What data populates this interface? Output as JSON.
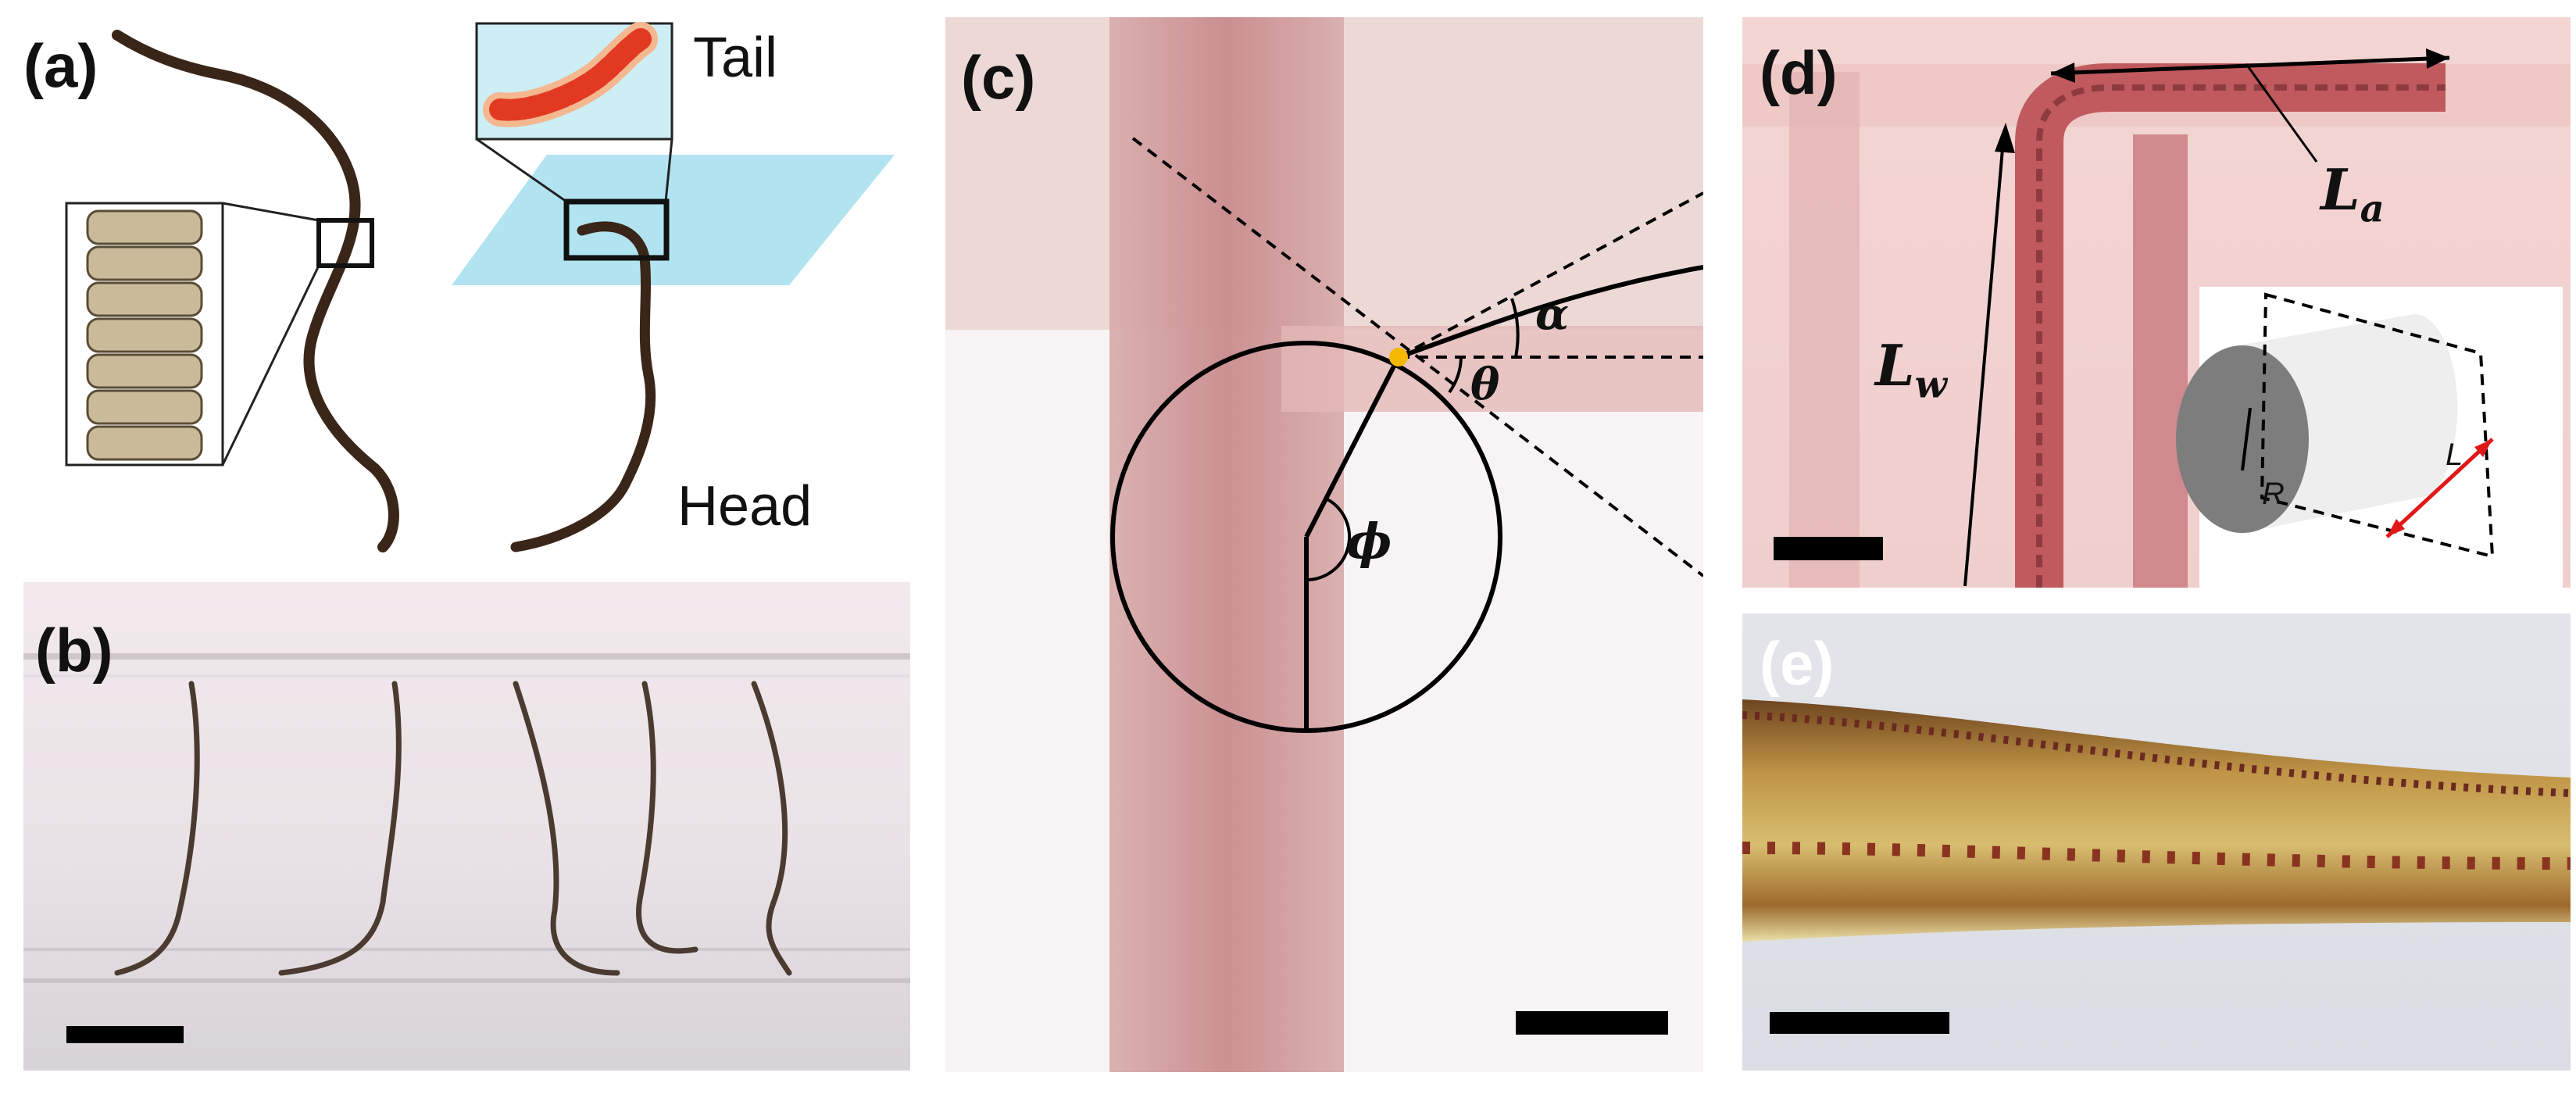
{
  "figure": {
    "panels": {
      "a": {
        "label": "(a)",
        "tail_text": "Tail",
        "head_text": "Head"
      },
      "b": {
        "label": "(b)"
      },
      "c": {
        "label": "(c)",
        "alpha": "α",
        "theta": "θ",
        "phi": "ϕ"
      },
      "d": {
        "label": "(d)",
        "La_main": "L",
        "La_sub": "a",
        "Lw_main": "L",
        "Lw_sub": "w",
        "inset_L": "L",
        "inset_R": "R"
      },
      "e": {
        "label": "(e)"
      }
    },
    "colors": {
      "worm_dark": "#3a2618",
      "water_plane": "#a8e1ee",
      "dot": "#f5b800",
      "red_arrow": "#e01818",
      "cylinder_face": "#7d7d7d"
    }
  }
}
